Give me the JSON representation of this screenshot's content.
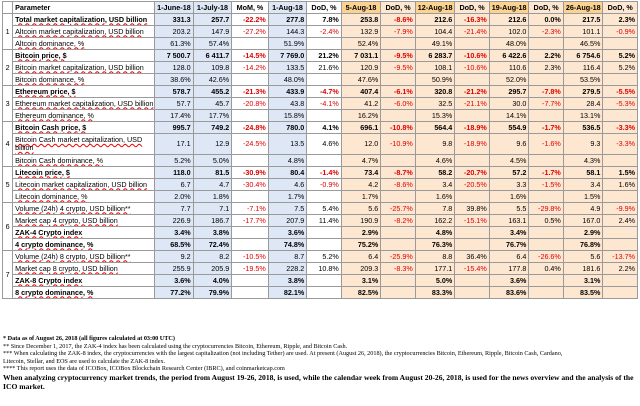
{
  "headers": [
    "Parameter",
    "1-June-18",
    "1-July-18",
    "MoM, %",
    "1-Aug-18",
    "DoD, %",
    "5-Aug-18",
    "DoD, %",
    "12-Aug-18",
    "DoD, %",
    "19-Aug-18",
    "DoD, %",
    "26-Aug-18",
    "DoD, %"
  ],
  "rows": [
    {
      "group": "1",
      "bold": true,
      "param": "Total market capitalization, USD billion",
      "v": [
        "331.3",
        "257.7",
        "-22.2%",
        "277.8",
        "7.8%",
        "253.8",
        "-8.6%",
        "212.6",
        "-16.3%",
        "212.6",
        "0.0%",
        "217.5",
        "2.3%"
      ]
    },
    {
      "group": "",
      "bold": false,
      "param": "Altcoin market capitalization, USD billion",
      "v": [
        "203.2",
        "147.9",
        "-27.2%",
        "144.3",
        "-2.4%",
        "132.9",
        "-7.9%",
        "104.4",
        "-21.4%",
        "102.0",
        "-2.3%",
        "101.1",
        "-0.9%"
      ]
    },
    {
      "group": "",
      "bold": false,
      "param": "Altcoin dominance, %",
      "v": [
        "61.3%",
        "57.4%",
        "",
        "51.9%",
        "",
        "52.4%",
        "",
        "49.1%",
        "",
        "48.0%",
        "",
        "46.5%",
        ""
      ]
    },
    {
      "group": "2",
      "bold": true,
      "param": "Bitcoin price, $",
      "v": [
        "7 500.7",
        "6 411.7",
        "-14.5%",
        "7 769.0",
        "21.2%",
        "7 031.1",
        "-9.5%",
        "6 283.7",
        "-10.6%",
        "6 422.6",
        "2.2%",
        "6 754.6",
        "5.2%"
      ]
    },
    {
      "group": "",
      "bold": false,
      "param": "Bitcoin market capitalization, USD billion",
      "v": [
        "128.0",
        "109.8",
        "-14.2%",
        "133.5",
        "21.6%",
        "120.9",
        "-9.5%",
        "108.1",
        "-10.6%",
        "110.6",
        "2.3%",
        "116.4",
        "5.2%"
      ]
    },
    {
      "group": "",
      "bold": false,
      "param": "Bitcoin dominance, %",
      "v": [
        "38.6%",
        "42.6%",
        "",
        "48.0%",
        "",
        "47.6%",
        "",
        "50.9%",
        "",
        "52.0%",
        "",
        "53.5%",
        ""
      ]
    },
    {
      "group": "3",
      "bold": true,
      "param": "Ethereum price, $",
      "v": [
        "578.7",
        "455.2",
        "-21.3%",
        "433.9",
        "-4.7%",
        "407.4",
        "-6.1%",
        "320.8",
        "-21.2%",
        "295.7",
        "-7.8%",
        "279.5",
        "-5.5%"
      ]
    },
    {
      "group": "",
      "bold": false,
      "param": "Ethereum market capitalization, USD billion",
      "v": [
        "57.7",
        "45.7",
        "-20.8%",
        "43.8",
        "-4.1%",
        "41.2",
        "-6.0%",
        "32.5",
        "-21.1%",
        "30.0",
        "-7.7%",
        "28.4",
        "-5.3%"
      ]
    },
    {
      "group": "",
      "bold": false,
      "param": "Ethereum dominance, %",
      "v": [
        "17.4%",
        "17.7%",
        "",
        "15.8%",
        "",
        "16.2%",
        "",
        "15.3%",
        "",
        "14.1%",
        "",
        "13.1%",
        ""
      ]
    },
    {
      "group": "4",
      "bold": true,
      "param": "Bitcoin Cash price, $",
      "v": [
        "995.7",
        "749.2",
        "-24.8%",
        "780.0",
        "4.1%",
        "696.1",
        "-10.8%",
        "564.4",
        "-18.9%",
        "554.9",
        "-1.7%",
        "536.5",
        "-3.3%"
      ]
    },
    {
      "group": "",
      "bold": false,
      "tall": true,
      "param": "Bitcoin Cash market capitalization, USD billion",
      "v": [
        "17.1",
        "12.9",
        "-24.5%",
        "13.5",
        "4.6%",
        "12.0",
        "-10.9%",
        "9.8",
        "-18.9%",
        "9.6",
        "-1.6%",
        "9.3",
        "-3.3%"
      ]
    },
    {
      "group": "",
      "bold": false,
      "param": "Bitcoin Cash dominance, %",
      "v": [
        "5.2%",
        "5.0%",
        "",
        "4.8%",
        "",
        "4.7%",
        "",
        "4.6%",
        "",
        "4.5%",
        "",
        "4.3%",
        ""
      ]
    },
    {
      "group": "5",
      "bold": true,
      "param": "Litecoin price, $",
      "v": [
        "118.0",
        "81.5",
        "-30.9%",
        "80.4",
        "-1.4%",
        "73.4",
        "-8.7%",
        "58.2",
        "-20.7%",
        "57.2",
        "-1.7%",
        "58.1",
        "1.5%"
      ]
    },
    {
      "group": "",
      "bold": false,
      "param": "Litecoin market capitalization, USD billion",
      "v": [
        "6.7",
        "4.7",
        "-30.4%",
        "4.6",
        "-0.9%",
        "4.2",
        "-8.6%",
        "3.4",
        "-20.5%",
        "3.3",
        "-1.5%",
        "3.4",
        "1.6%"
      ]
    },
    {
      "group": "",
      "bold": false,
      "param": "Litecoin dominance, %",
      "v": [
        "2.0%",
        "1.8%",
        "",
        "1.7%",
        "",
        "1.7%",
        "",
        "1.6%",
        "",
        "1.6%",
        "",
        "1.5%",
        ""
      ]
    },
    {
      "group": "6",
      "bold": false,
      "param": "Volume (24h) 4 crypto, USD billion**",
      "v": [
        "7.7",
        "7.1",
        "-7.1%",
        "7.5",
        "5.4%",
        "5.6",
        "-25.7%",
        "7.8",
        "39.8%",
        "5.5",
        "-29.8%",
        "4.9",
        "-9.9%"
      ]
    },
    {
      "group": "",
      "bold": false,
      "param": "Market cap 4 crypto, USD billion",
      "v": [
        "226.9",
        "186.7",
        "-17.7%",
        "207.9",
        "11.4%",
        "190.9",
        "-8.2%",
        "162.2",
        "-15.1%",
        "163.1",
        "0.5%",
        "167.0",
        "2.4%"
      ]
    },
    {
      "group": "",
      "bold": true,
      "param": "ZAK-4 Crypto index",
      "v": [
        "3.4%",
        "3.8%",
        "",
        "3.6%",
        "",
        "2.9%",
        "",
        "4.8%",
        "",
        "3.4%",
        "",
        "2.9%",
        ""
      ]
    },
    {
      "group": "",
      "bold": true,
      "param": "4 crypto dominance, %",
      "v": [
        "68.5%",
        "72.4%",
        "",
        "74.8%",
        "",
        "75.2%",
        "",
        "76.3%",
        "",
        "76.7%",
        "",
        "76.8%",
        ""
      ]
    },
    {
      "group": "7",
      "bold": false,
      "param": "Volume (24h) 8 crypto, USD billion**",
      "v": [
        "9.2",
        "8.2",
        "-10.5%",
        "8.7",
        "5.2%",
        "6.4",
        "-25.9%",
        "8.8",
        "36.4%",
        "6.4",
        "-26.6%",
        "5.6",
        "-13.7%"
      ]
    },
    {
      "group": "",
      "bold": false,
      "param": "Market cap 8 crypto, USD billion",
      "v": [
        "255.9",
        "205.9",
        "-19.5%",
        "228.2",
        "10.8%",
        "209.3",
        "-8.3%",
        "177.1",
        "-15.4%",
        "177.8",
        "0.4%",
        "181.6",
        "2.2%"
      ]
    },
    {
      "group": "",
      "bold": true,
      "param": "ZAK-8 Crypto index",
      "v": [
        "3.6%",
        "4.0%",
        "",
        "3.8%",
        "",
        "3.1%",
        "",
        "5.0%",
        "",
        "3.6%",
        "",
        "3.1%",
        ""
      ]
    },
    {
      "group": "",
      "bold": true,
      "param": "8 crypto dominance, %",
      "v": [
        "77.2%",
        "79.9%",
        "",
        "82.1%",
        "",
        "82.5%",
        "",
        "83.3%",
        "",
        "83.6%",
        "",
        "83.5%",
        ""
      ]
    }
  ],
  "notes": [
    "* Data as of August 26, 2018 (all figures calculated at 03:00 UTC)",
    "** Since December 1, 2017, the ZAK-4 index has been calculated using the cryptocurrencies Bitcoin, Ethereum, Ripple, and Bitcoin Cash.",
    "*** When calculating the ZAK-8 index, the cryptocurrencies with the largest capitalization (not including Tether) are used. At present (August 26, 2018), the cryptocurrencies Bitcoin, Ethereum, Ripple, Bitcoin Cash, Cardano,",
    "Litecoin, Stellar, and EOS are used to calculate the ZAK-8 index.",
    "**** This report uses the data of ICOBox, ICOBox Blockchain Research Center (IBRC), and coinmarketcap.com"
  ],
  "final_note": "When analyzing cryptocurrency market trends, the period from August 19-26, 2018, is used, while the calendar week from August 20-26, 2018, is used for the news overview and the analysis of the ICO market."
}
